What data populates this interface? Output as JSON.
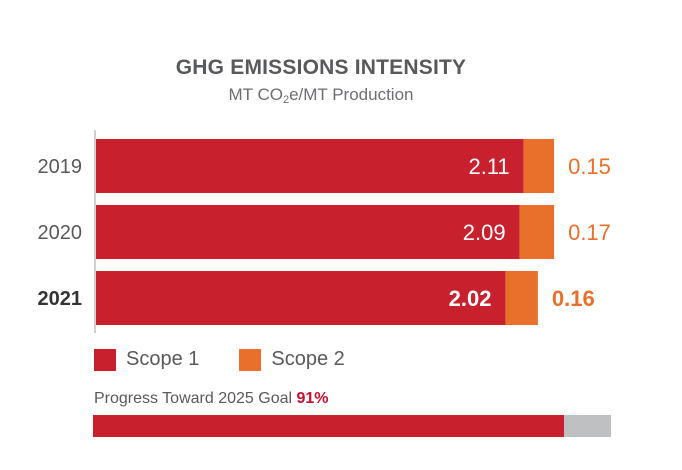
{
  "chart_data": {
    "type": "bar",
    "orientation": "horizontal",
    "stacked": true,
    "title": "GHG EMISSIONS INTENSITY",
    "subtitle_prefix": "MT CO",
    "subtitle_sub": "2",
    "subtitle_suffix": "e/MT Production",
    "categories": [
      "2019",
      "2020",
      "2021"
    ],
    "series": [
      {
        "name": "Scope 1",
        "values": [
          2.11,
          2.09,
          2.02
        ],
        "color": "#c8202c"
      },
      {
        "name": "Scope 2",
        "values": [
          0.15,
          0.17,
          0.16
        ],
        "color": "#e8702a"
      }
    ],
    "value_labels": {
      "scope1": [
        "2.11",
        "2.09",
        "2.02"
      ],
      "scope2": [
        "0.15",
        "0.17",
        "0.16"
      ]
    },
    "highlighted_category": "2021",
    "xlim": [
      0,
      2.6
    ],
    "legend_position": "bottom-left",
    "grid": false
  },
  "legend": {
    "scope1_label": "Scope 1",
    "scope2_label": "Scope 2"
  },
  "progress": {
    "label": "Progress Toward 2025 Goal",
    "percent_text": "91%",
    "fraction": 0.91,
    "fill_color": "#c8202c",
    "track_color": "#bfc0c2"
  },
  "colors": {
    "axis": "#bfbfbf",
    "category_text": "#58595b",
    "scope1": "#c8202c",
    "scope2": "#e8702a"
  }
}
